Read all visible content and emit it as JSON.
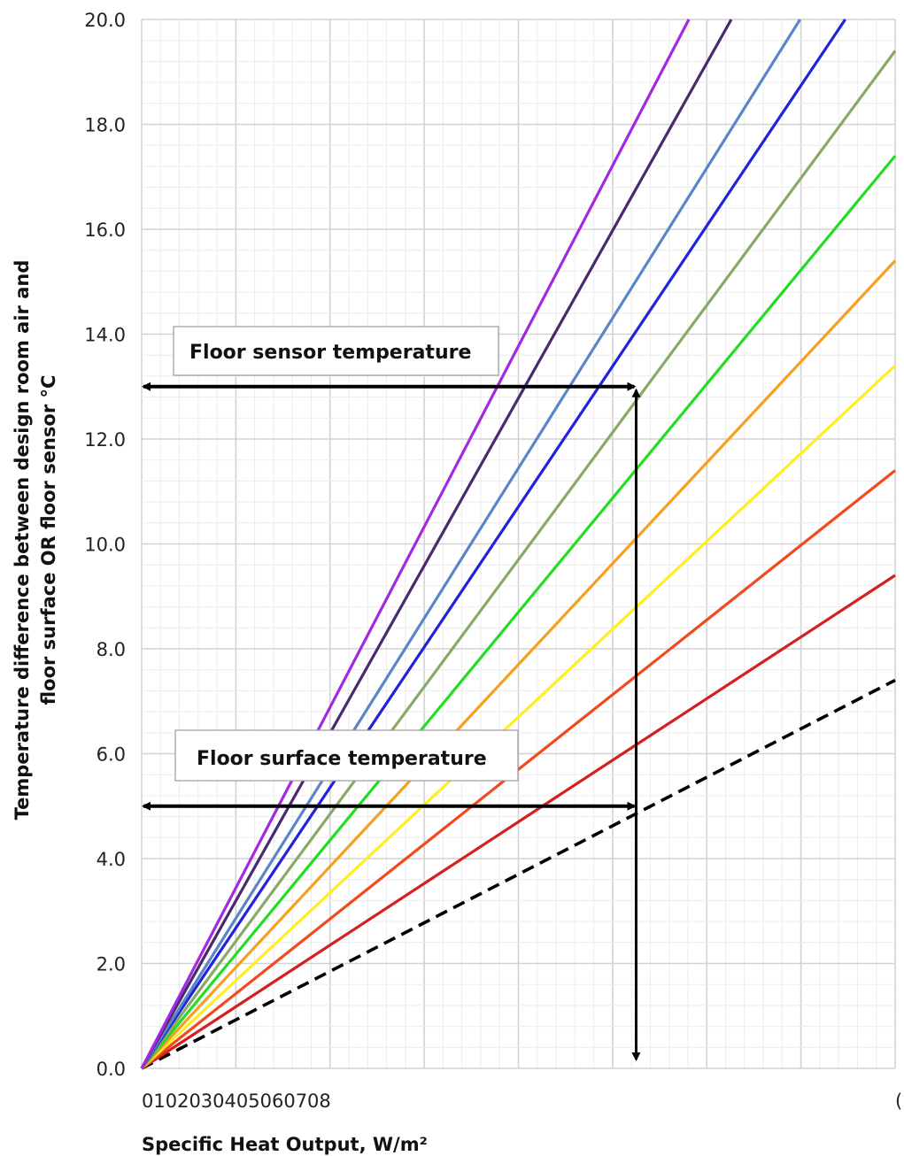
{
  "chart_data": {
    "type": "line",
    "xlabel": "Specific Heat Output, W/m²",
    "ylabel_line1": "Temperature difference between design room air and",
    "ylabel_line2": "floor surface OR floor sensor °C",
    "x_tick_text": "0102030405060708",
    "x_tick_right_fragment": "(",
    "xlim": [
      0,
      80
    ],
    "ylim": [
      0,
      20
    ],
    "y_ticks": [
      "0.0",
      "2.0",
      "4.0",
      "6.0",
      "8.0",
      "10.0",
      "12.0",
      "14.0",
      "16.0",
      "18.0",
      "20.0"
    ],
    "grid": true,
    "series": [
      {
        "color": "#000000",
        "dashed": true,
        "values": [
          [
            0,
            0
          ],
          [
            80,
            7.4
          ]
        ]
      },
      {
        "color": "#d42020",
        "values": [
          [
            0,
            0
          ],
          [
            80,
            9.4
          ]
        ]
      },
      {
        "color": "#f04a1e",
        "values": [
          [
            0,
            0
          ],
          [
            80,
            11.4
          ]
        ]
      },
      {
        "color": "#ffee22",
        "values": [
          [
            0,
            0
          ],
          [
            80,
            13.4
          ]
        ]
      },
      {
        "color": "#f5a01e",
        "values": [
          [
            0,
            0
          ],
          [
            80,
            15.4
          ]
        ]
      },
      {
        "color": "#22dd22",
        "values": [
          [
            0,
            0
          ],
          [
            80,
            17.4
          ]
        ]
      },
      {
        "color": "#88aa66",
        "values": [
          [
            0,
            0
          ],
          [
            80,
            19.4
          ]
        ]
      },
      {
        "color": "#2222dd",
        "values": [
          [
            0,
            0
          ],
          [
            74.7,
            20
          ]
        ]
      },
      {
        "color": "#5a86c8",
        "values": [
          [
            0,
            0
          ],
          [
            69.9,
            20
          ]
        ]
      },
      {
        "color": "#4a2a6e",
        "values": [
          [
            0,
            0
          ],
          [
            62.6,
            20
          ]
        ]
      },
      {
        "color": "#a428e0",
        "values": [
          [
            0,
            0
          ],
          [
            58.1,
            20
          ]
        ]
      }
    ],
    "annotations": [
      {
        "text": "Floor sensor temperature",
        "y": 13,
        "x_end": 52.5
      },
      {
        "text": "Floor surface temperature",
        "y": 5,
        "x_end": 52.5
      }
    ],
    "vertical_arrow": {
      "x": 52.5,
      "y_from": 13,
      "y_to": 0
    }
  }
}
